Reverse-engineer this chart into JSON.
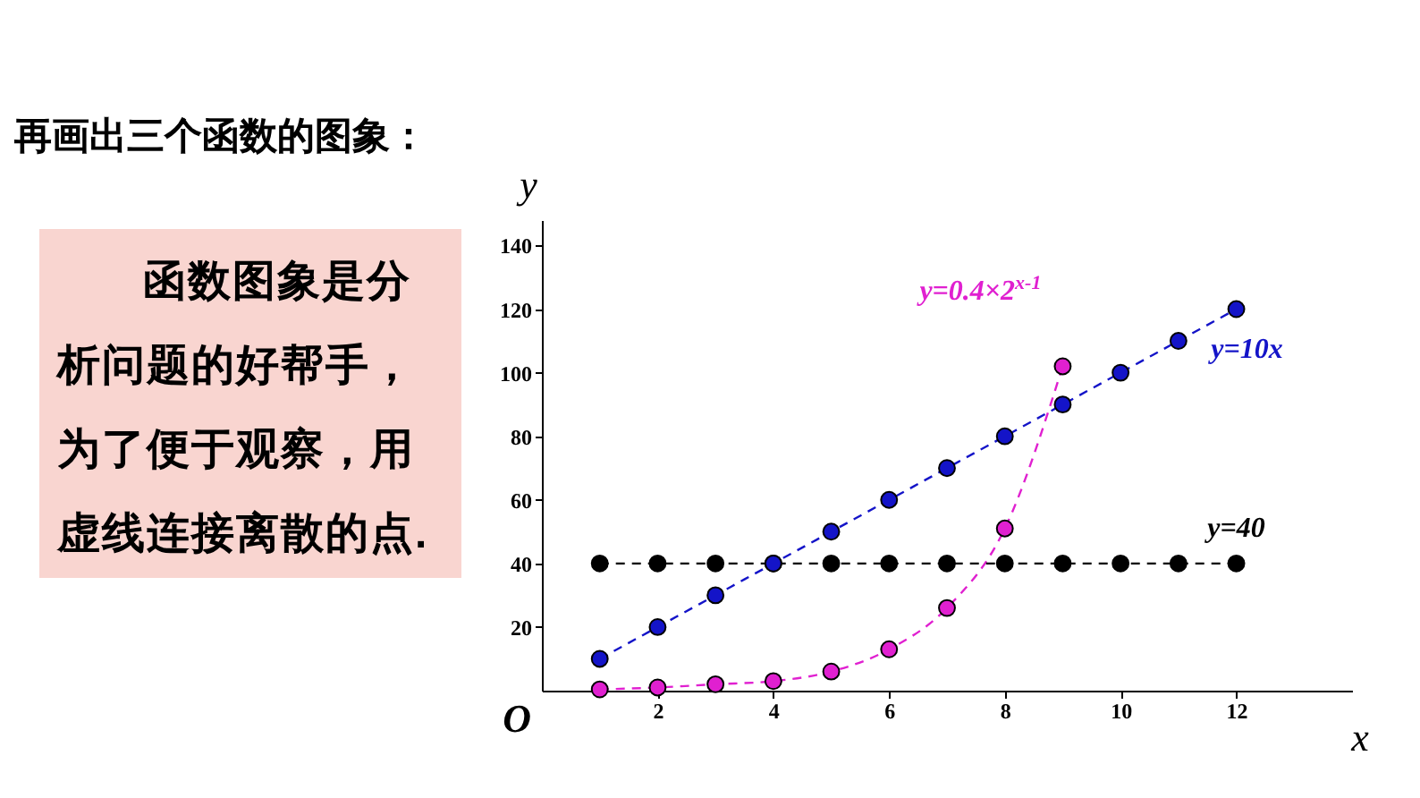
{
  "chart_data": {
    "type": "line",
    "title": "再画出三个函数的图象：",
    "annotations": [
      "函数图象是分析问题的好帮手，为了便于观察，用虚线连接离散的点.",
      "O"
    ],
    "xlabel": "x",
    "ylabel": "y",
    "x": [
      1,
      2,
      3,
      4,
      5,
      6,
      7,
      8,
      9,
      10,
      11,
      12
    ],
    "series": [
      {
        "name": "y=0.4×2$^{x-1}$",
        "color": "#e020d0",
        "x": [
          1,
          2,
          3,
          4,
          5,
          6,
          7,
          8,
          9
        ],
        "values": [
          0.4,
          1,
          2,
          3,
          6,
          13,
          26,
          51,
          102
        ]
      },
      {
        "name": "y=10x",
        "color": "#1414c8",
        "values": [
          10,
          20,
          30,
          40,
          50,
          60,
          70,
          80,
          90,
          100,
          110,
          120
        ]
      },
      {
        "name": "y=40",
        "color": "#000000",
        "values": [
          40,
          40,
          40,
          40,
          40,
          40,
          40,
          40,
          40,
          40,
          40,
          40
        ]
      }
    ],
    "xlim": [
      0,
      14
    ],
    "ylim": [
      0,
      148
    ],
    "xticks": [
      2,
      4,
      6,
      8,
      10,
      12
    ],
    "yticks": [
      20,
      40,
      60,
      80,
      100,
      120,
      140
    ],
    "grid": false,
    "legend": false,
    "marker": "circle",
    "line_style": "dashed"
  }
}
